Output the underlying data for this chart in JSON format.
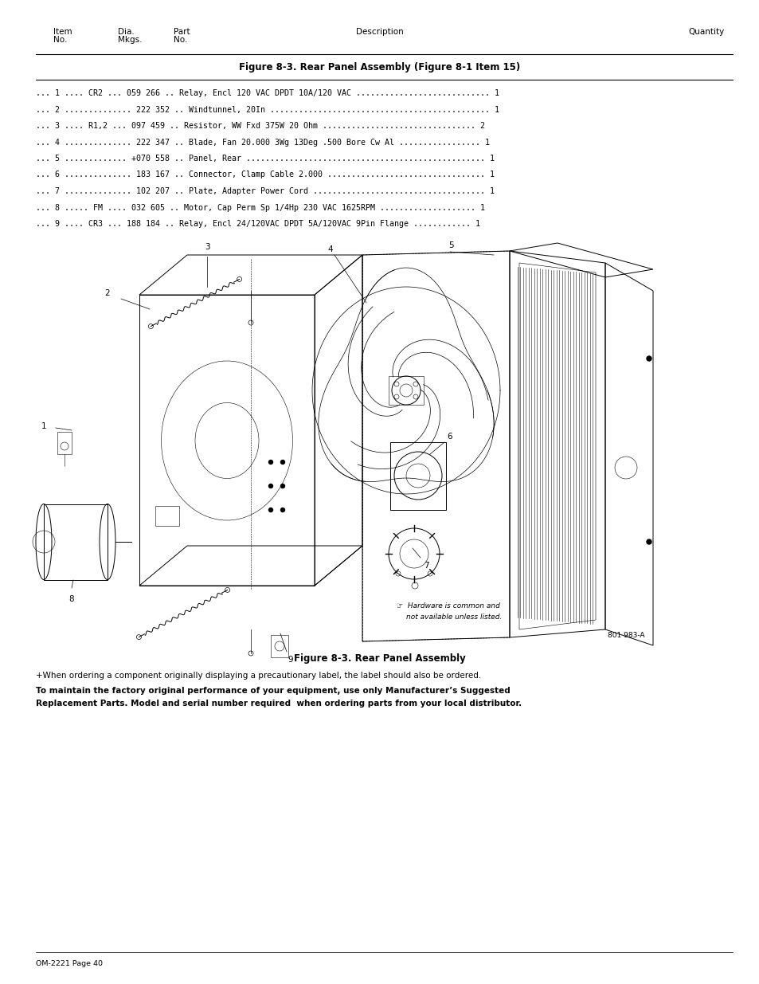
{
  "page_bg": "#ffffff",
  "section_title": "Figure 8-3. Rear Panel Assembly (Figure 8-1 Item 15)",
  "parts": [
    {
      "row": "... 1 .... CR2 ... 059 266 .. Relay, Encl 120 VAC DPDT 10A/120 VAC ............................ 1"
    },
    {
      "row": "... 2 .............. 222 352 .. Windtunnel, 20In .............................................. 1"
    },
    {
      "row": "... 3 .... R1,2 ... 097 459 .. Resistor, WW Fxd 375W 20 Ohm ................................ 2"
    },
    {
      "row": "... 4 .............. 222 347 .. Blade, Fan 20.000 3Wg 13Deg .500 Bore Cw Al ................. 1"
    },
    {
      "row": "... 5 ............. +070 558 .. Panel, Rear .................................................. 1"
    },
    {
      "row": "... 6 .............. 183 167 .. Connector, Clamp Cable 2.000 ................................. 1"
    },
    {
      "row": "... 7 .............. 102 207 .. Plate, Adapter Power Cord .................................... 1"
    },
    {
      "row": "... 8 ..... FM .... 032 605 .. Motor, Cap Perm Sp 1/4Hp 230 VAC 1625RPM .................... 1"
    },
    {
      "row": "... 9 .... CR3 ... 188 184 .. Relay, Encl 24/120VAC DPDT 5A/120VAC 9Pin Flange ............ 1"
    }
  ],
  "fig_caption": "Figure 8-3. Rear Panel Assembly",
  "note_plus": "+When ordering a component originally displaying a precautionary label, the label should also be ordered.",
  "note_bold_1": "To maintain the factory original performance of your equipment, use only Manufacturer’s Suggested",
  "note_bold_2": "Replacement Parts. Model and serial number required  when ordering parts from your local distributor.",
  "hardware_note_1": "Hardware is common and",
  "hardware_note_2": "not available unless listed.",
  "fig_code": "801 983-A",
  "footer": "OM-2221 Page 40"
}
